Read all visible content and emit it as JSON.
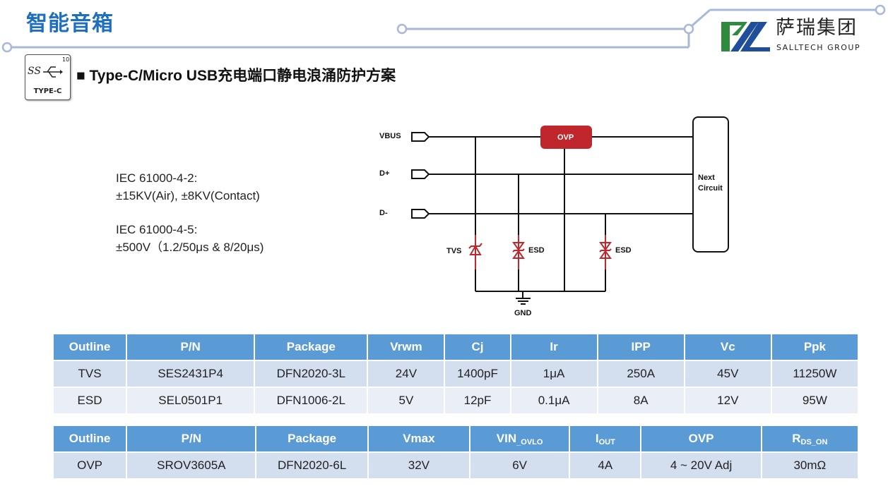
{
  "header": {
    "title": "智能音箱",
    "logo_cn": "萨瑞集团",
    "logo_en": "SALLTECH GROUP",
    "accent_color": "#1F6FC0"
  },
  "usb_icon": {
    "ss": "SS",
    "ten": "10",
    "label": "TYPE-C"
  },
  "subtitle": "■ Type-C/Micro USB充电端口静电浪涌防护方案",
  "specs": [
    {
      "line1": "IEC 61000-4-2:",
      "line2": "±15KV(Air), ±8KV(Contact)"
    },
    {
      "line1": "IEC 61000-4-5:",
      "line2": "±500V（1.2/50μs & 8/20μs)"
    }
  ],
  "diagram": {
    "vbus": "VBUS",
    "dplus": "D+",
    "dminus": "D-",
    "ovp": "OVP",
    "next1": "Next",
    "next2": "Circuit",
    "tvs": "TVS",
    "esd1": "ESD",
    "esd2": "ESD",
    "gnd": "GND",
    "ovp_color": "#C0272D"
  },
  "table1": {
    "headers": [
      "Outline",
      "P/N",
      "Package",
      "Vrwm",
      "Cj",
      "Ir",
      "IPP",
      "Vc",
      "Ppk"
    ],
    "rows": [
      [
        "TVS",
        "SES2431P4",
        "DFN2020-3L",
        "24V",
        "1400pF",
        "1μA",
        "250A",
        "45V",
        "11250W"
      ],
      [
        "ESD",
        "SEL0501P1",
        "DFN1006-2L",
        "5V",
        "12pF",
        "0.1μA",
        "8A",
        "12V",
        "95W"
      ]
    ]
  },
  "table2": {
    "headers": [
      "Outline",
      "P/N",
      "Package",
      "Vmax",
      "VIN",
      "_OVLO",
      "I",
      "OUT",
      "OVP",
      "R",
      "DS_ON"
    ],
    "rows": [
      [
        "OVP",
        "SROV3605A",
        "DFN2020-6L",
        "32V",
        "6V",
        "4A",
        "4 ~ 20V Adj",
        "30mΩ"
      ]
    ]
  }
}
